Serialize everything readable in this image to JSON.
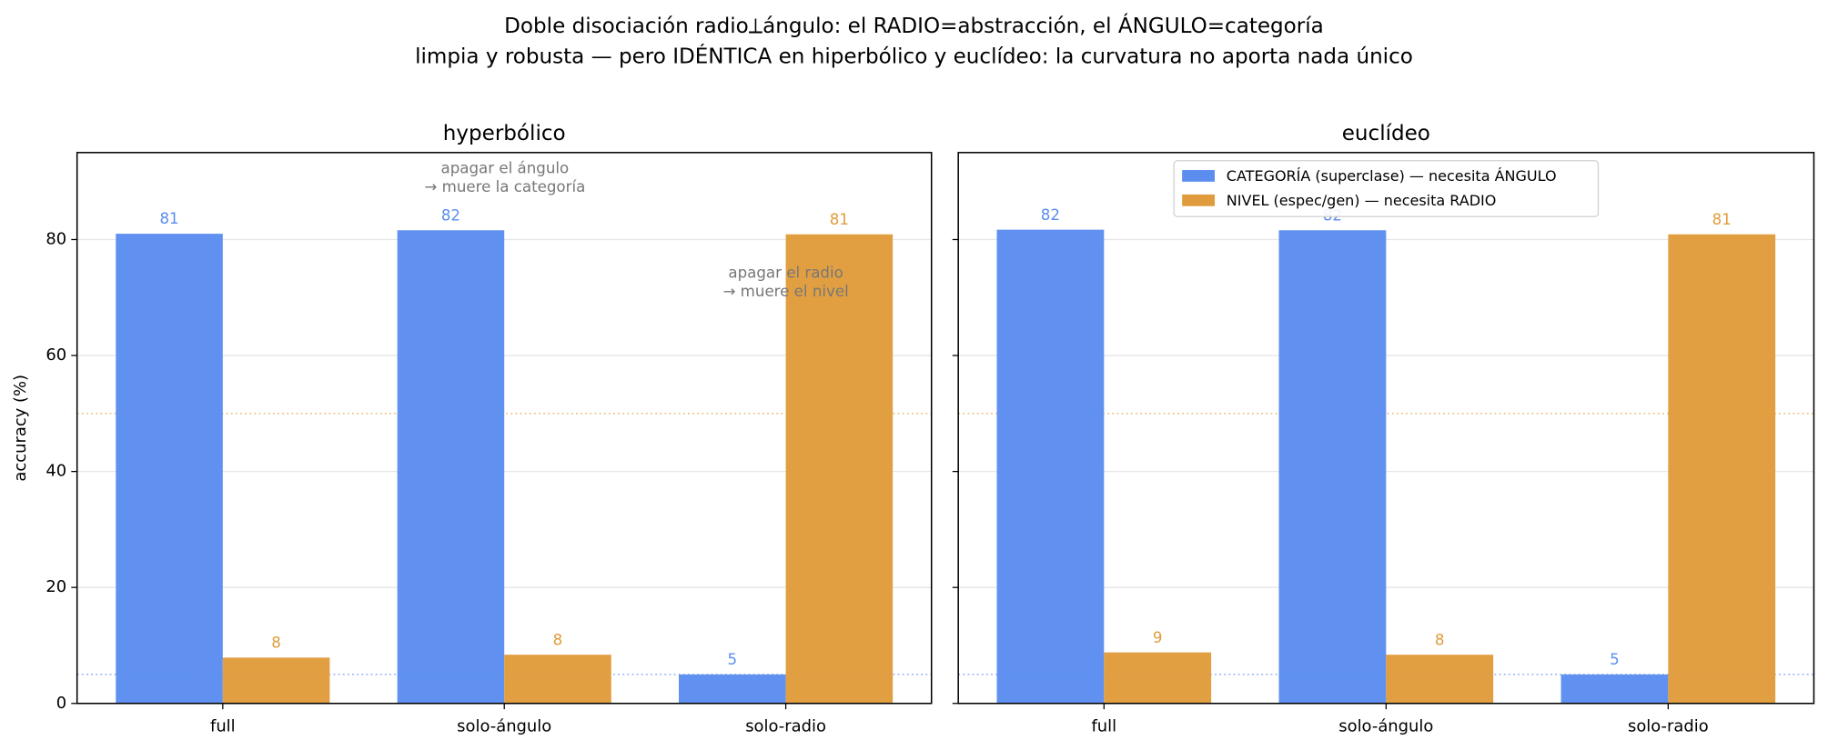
{
  "title": [
    "Doble disociación radio⟂ángulo: el RADIO=abstracción, el ÁNGULO=categoría",
    "limpia y robusta — pero IDÉNTICA en hiperbólico y euclídeo: la curvatura no aporta nada único"
  ],
  "chart_data": [
    {
      "type": "bar",
      "title": "hyperbólico",
      "ylabel": "accuracy (%)",
      "categories": [
        "full",
        "solo-ángulo",
        "solo-radio"
      ],
      "series": [
        {
          "name": "CATEGORÍA (superclase) — necesita ÁNGULO",
          "color": "#5b8def",
          "values": [
            81.0,
            81.6,
            5.0
          ],
          "value_labels": [
            "81",
            "82",
            "5"
          ]
        },
        {
          "name": "NIVEL (espec/gen) — necesita RADIO",
          "color": "#e09c3c",
          "values": [
            7.9,
            8.4,
            80.9
          ],
          "value_labels": [
            "8",
            "8",
            "81"
          ]
        }
      ],
      "ylim": [
        0,
        95
      ],
      "yticks": [
        0,
        20,
        40,
        60,
        80
      ],
      "grid": true,
      "reference_lines": [
        {
          "value": 50,
          "color": "#e09c3c"
        },
        {
          "value": 5,
          "color": "#5b8def"
        }
      ],
      "annotations": [
        [
          "apagar el ángulo",
          "→ muere la categoría"
        ],
        [
          "apagar el radio",
          "→ muere el nivel"
        ]
      ]
    },
    {
      "type": "bar",
      "title": "euclídeo",
      "categories": [
        "full",
        "solo-ángulo",
        "solo-radio"
      ],
      "series": [
        {
          "name": "CATEGORÍA (superclase) — necesita ÁNGULO",
          "color": "#5b8def",
          "values": [
            81.7,
            81.6,
            5.0
          ],
          "value_labels": [
            "82",
            "82",
            "5"
          ]
        },
        {
          "name": "NIVEL (espec/gen) — necesita RADIO",
          "color": "#e09c3c",
          "values": [
            8.8,
            8.4,
            80.9
          ],
          "value_labels": [
            "9",
            "8",
            "81"
          ]
        }
      ],
      "ylim": [
        0,
        95
      ],
      "yticks": [
        0,
        20,
        40,
        60,
        80
      ],
      "grid": true,
      "legend": "upper center",
      "reference_lines": [
        {
          "value": 50,
          "color": "#e09c3c"
        },
        {
          "value": 5,
          "color": "#5b8def"
        }
      ]
    }
  ]
}
